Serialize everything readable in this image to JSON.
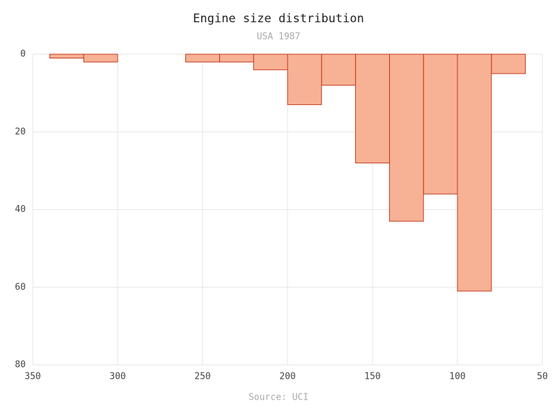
{
  "chart_data": {
    "type": "histogram",
    "title": "Engine size distribution",
    "subtitle": "USA 1987",
    "caption": "Source: UCI",
    "bins": [
      60,
      80,
      100,
      120,
      140,
      160,
      180,
      200,
      220,
      240,
      260,
      280,
      300,
      320,
      340
    ],
    "values": [
      5,
      61,
      36,
      43,
      28,
      8,
      13,
      4,
      2,
      2,
      0,
      0,
      2,
      1
    ],
    "color": "#f7b195",
    "edge_color": "#c0391b",
    "xlim": [
      350,
      50
    ],
    "xticks": [
      350,
      300,
      250,
      200,
      150,
      100,
      50
    ],
    "ylim": [
      80,
      0
    ],
    "yticks": [
      0,
      20,
      40,
      60,
      80
    ],
    "grid": true
  }
}
